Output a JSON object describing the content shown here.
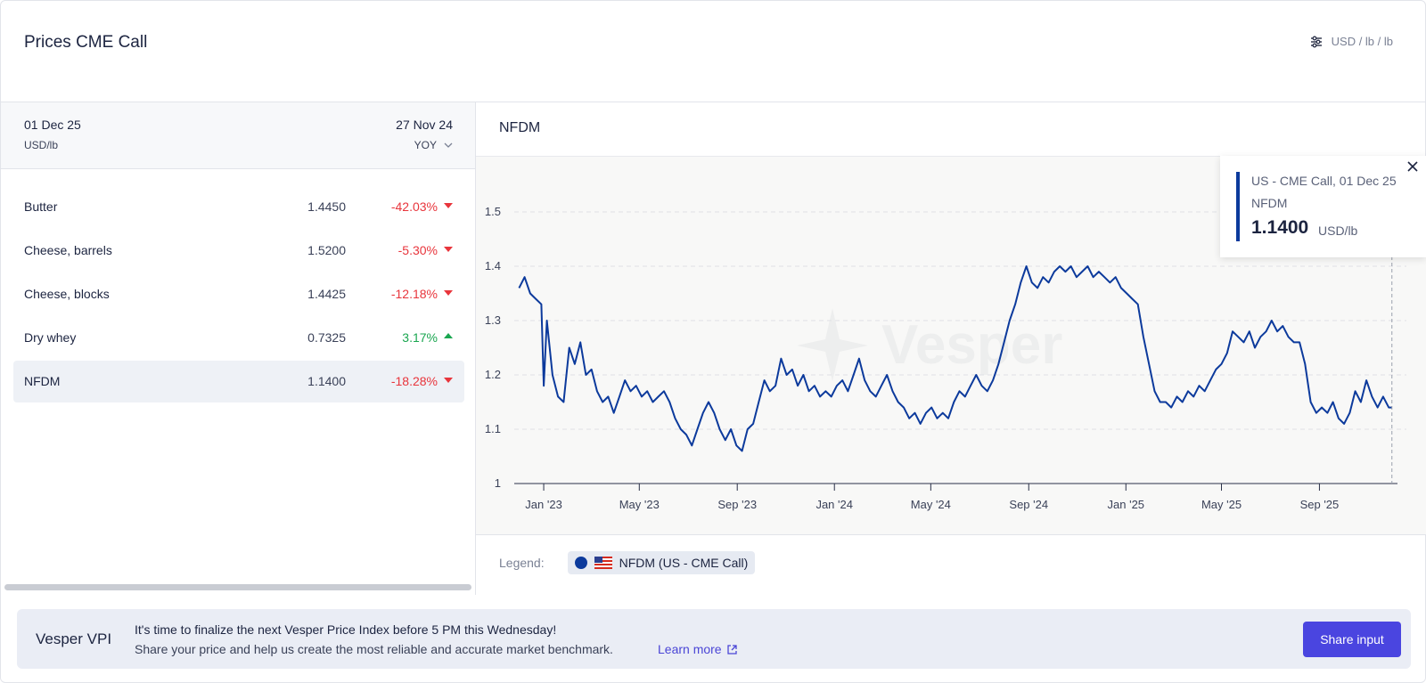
{
  "header": {
    "title": "Prices CME Call",
    "unit_selector": "USD / lb / lb",
    "unit_icon": "sliders-icon"
  },
  "left_panel": {
    "current_date": "01 Dec 25",
    "current_unit": "USD/lb",
    "compare_date": "27 Nov 24",
    "compare_mode": "YOY",
    "rows": [
      {
        "name": "Butter",
        "value": "1.4450",
        "change": "-42.03%",
        "direction": "down"
      },
      {
        "name": "Cheese, barrels",
        "value": "1.5200",
        "change": "-5.30%",
        "direction": "down"
      },
      {
        "name": "Cheese, blocks",
        "value": "1.4425",
        "change": "-12.18%",
        "direction": "down"
      },
      {
        "name": "Dry whey",
        "value": "0.7325",
        "change": "3.17%",
        "direction": "up"
      },
      {
        "name": "NFDM",
        "value": "1.1400",
        "change": "-18.28%",
        "direction": "down",
        "selected": true
      }
    ]
  },
  "chart_panel": {
    "title": "NFDM",
    "watermark": "Vesper",
    "tooltip": {
      "line1": "US - CME Call, 01 Dec 25",
      "line2": "NFDM",
      "value": "1.1400",
      "unit": "USD/lb"
    },
    "legend_label": "Legend:",
    "legend_item": "NFDM (US - CME Call)"
  },
  "chart_data": {
    "type": "line",
    "title": "NFDM",
    "xlabel": "",
    "ylabel": "",
    "ylim": [
      1,
      1.5
    ],
    "y_ticks": [
      "1",
      "1.1",
      "1.2",
      "1.3",
      "1.4",
      "1.5"
    ],
    "x_ticks": [
      "Jan '23",
      "May '23",
      "Sep '23",
      "Jan '24",
      "May '24",
      "Sep '24",
      "Jan '25",
      "May '25",
      "Sep '25"
    ],
    "x_tick_dates": [
      "2023-01-01",
      "2023-05-01",
      "2023-09-01",
      "2024-01-01",
      "2024-05-01",
      "2024-09-01",
      "2025-01-01",
      "2025-05-01",
      "2025-09-01"
    ],
    "grid": "horizontal-dashed",
    "color": "#0c3a9c",
    "series": [
      {
        "name": "NFDM (US - CME Call)",
        "points": [
          [
            "2022-12-01",
            1.36
          ],
          [
            "2022-12-08",
            1.38
          ],
          [
            "2022-12-15",
            1.35
          ],
          [
            "2022-12-22",
            1.34
          ],
          [
            "2022-12-29",
            1.33
          ],
          [
            "2023-01-01",
            1.18
          ],
          [
            "2023-01-05",
            1.3
          ],
          [
            "2023-01-12",
            1.2
          ],
          [
            "2023-01-19",
            1.16
          ],
          [
            "2023-01-26",
            1.15
          ],
          [
            "2023-02-02",
            1.25
          ],
          [
            "2023-02-09",
            1.22
          ],
          [
            "2023-02-16",
            1.26
          ],
          [
            "2023-02-23",
            1.2
          ],
          [
            "2023-03-02",
            1.21
          ],
          [
            "2023-03-09",
            1.17
          ],
          [
            "2023-03-16",
            1.15
          ],
          [
            "2023-03-23",
            1.16
          ],
          [
            "2023-03-30",
            1.13
          ],
          [
            "2023-04-06",
            1.16
          ],
          [
            "2023-04-13",
            1.19
          ],
          [
            "2023-04-20",
            1.17
          ],
          [
            "2023-04-27",
            1.18
          ],
          [
            "2023-05-04",
            1.16
          ],
          [
            "2023-05-11",
            1.17
          ],
          [
            "2023-05-18",
            1.15
          ],
          [
            "2023-05-25",
            1.16
          ],
          [
            "2023-06-01",
            1.17
          ],
          [
            "2023-06-08",
            1.15
          ],
          [
            "2023-06-15",
            1.12
          ],
          [
            "2023-06-22",
            1.1
          ],
          [
            "2023-06-29",
            1.09
          ],
          [
            "2023-07-06",
            1.07
          ],
          [
            "2023-07-13",
            1.1
          ],
          [
            "2023-07-20",
            1.13
          ],
          [
            "2023-07-27",
            1.15
          ],
          [
            "2023-08-03",
            1.13
          ],
          [
            "2023-08-10",
            1.1
          ],
          [
            "2023-08-17",
            1.08
          ],
          [
            "2023-08-24",
            1.1
          ],
          [
            "2023-08-31",
            1.07
          ],
          [
            "2023-09-07",
            1.06
          ],
          [
            "2023-09-14",
            1.1
          ],
          [
            "2023-09-21",
            1.11
          ],
          [
            "2023-09-28",
            1.15
          ],
          [
            "2023-10-05",
            1.19
          ],
          [
            "2023-10-12",
            1.17
          ],
          [
            "2023-10-19",
            1.18
          ],
          [
            "2023-10-26",
            1.23
          ],
          [
            "2023-11-02",
            1.2
          ],
          [
            "2023-11-09",
            1.21
          ],
          [
            "2023-11-16",
            1.18
          ],
          [
            "2023-11-23",
            1.2
          ],
          [
            "2023-11-30",
            1.17
          ],
          [
            "2023-12-07",
            1.18
          ],
          [
            "2023-12-14",
            1.16
          ],
          [
            "2023-12-21",
            1.17
          ],
          [
            "2023-12-28",
            1.16
          ],
          [
            "2024-01-04",
            1.18
          ],
          [
            "2024-01-11",
            1.19
          ],
          [
            "2024-01-18",
            1.17
          ],
          [
            "2024-01-25",
            1.2
          ],
          [
            "2024-02-01",
            1.23
          ],
          [
            "2024-02-08",
            1.19
          ],
          [
            "2024-02-15",
            1.17
          ],
          [
            "2024-02-22",
            1.16
          ],
          [
            "2024-02-29",
            1.18
          ],
          [
            "2024-03-07",
            1.2
          ],
          [
            "2024-03-14",
            1.17
          ],
          [
            "2024-03-21",
            1.15
          ],
          [
            "2024-03-28",
            1.14
          ],
          [
            "2024-04-04",
            1.12
          ],
          [
            "2024-04-11",
            1.13
          ],
          [
            "2024-04-18",
            1.11
          ],
          [
            "2024-04-25",
            1.13
          ],
          [
            "2024-05-02",
            1.14
          ],
          [
            "2024-05-09",
            1.12
          ],
          [
            "2024-05-16",
            1.13
          ],
          [
            "2024-05-23",
            1.12
          ],
          [
            "2024-05-30",
            1.15
          ],
          [
            "2024-06-06",
            1.17
          ],
          [
            "2024-06-13",
            1.16
          ],
          [
            "2024-06-20",
            1.18
          ],
          [
            "2024-06-27",
            1.2
          ],
          [
            "2024-07-04",
            1.18
          ],
          [
            "2024-07-11",
            1.17
          ],
          [
            "2024-07-18",
            1.19
          ],
          [
            "2024-07-25",
            1.22
          ],
          [
            "2024-08-01",
            1.26
          ],
          [
            "2024-08-08",
            1.3
          ],
          [
            "2024-08-15",
            1.33
          ],
          [
            "2024-08-22",
            1.37
          ],
          [
            "2024-08-29",
            1.4
          ],
          [
            "2024-09-05",
            1.37
          ],
          [
            "2024-09-12",
            1.36
          ],
          [
            "2024-09-19",
            1.38
          ],
          [
            "2024-09-26",
            1.37
          ],
          [
            "2024-10-03",
            1.39
          ],
          [
            "2024-10-10",
            1.4
          ],
          [
            "2024-10-17",
            1.39
          ],
          [
            "2024-10-24",
            1.4
          ],
          [
            "2024-10-31",
            1.38
          ],
          [
            "2024-11-07",
            1.39
          ],
          [
            "2024-11-14",
            1.4
          ],
          [
            "2024-11-21",
            1.38
          ],
          [
            "2024-11-28",
            1.39
          ],
          [
            "2024-12-05",
            1.38
          ],
          [
            "2024-12-12",
            1.37
          ],
          [
            "2024-12-19",
            1.38
          ],
          [
            "2024-12-26",
            1.36
          ],
          [
            "2025-01-02",
            1.35
          ],
          [
            "2025-01-09",
            1.34
          ],
          [
            "2025-01-16",
            1.33
          ],
          [
            "2025-01-23",
            1.27
          ],
          [
            "2025-01-30",
            1.22
          ],
          [
            "2025-02-06",
            1.17
          ],
          [
            "2025-02-13",
            1.15
          ],
          [
            "2025-02-20",
            1.15
          ],
          [
            "2025-02-27",
            1.14
          ],
          [
            "2025-03-06",
            1.16
          ],
          [
            "2025-03-13",
            1.15
          ],
          [
            "2025-03-20",
            1.17
          ],
          [
            "2025-03-27",
            1.16
          ],
          [
            "2025-04-03",
            1.18
          ],
          [
            "2025-04-10",
            1.17
          ],
          [
            "2025-04-17",
            1.19
          ],
          [
            "2025-04-24",
            1.21
          ],
          [
            "2025-05-01",
            1.22
          ],
          [
            "2025-05-08",
            1.24
          ],
          [
            "2025-05-15",
            1.28
          ],
          [
            "2025-05-22",
            1.27
          ],
          [
            "2025-05-29",
            1.26
          ],
          [
            "2025-06-05",
            1.28
          ],
          [
            "2025-06-12",
            1.25
          ],
          [
            "2025-06-19",
            1.27
          ],
          [
            "2025-06-26",
            1.28
          ],
          [
            "2025-07-03",
            1.3
          ],
          [
            "2025-07-10",
            1.28
          ],
          [
            "2025-07-17",
            1.29
          ],
          [
            "2025-07-24",
            1.27
          ],
          [
            "2025-07-31",
            1.26
          ],
          [
            "2025-08-07",
            1.26
          ],
          [
            "2025-08-14",
            1.22
          ],
          [
            "2025-08-21",
            1.15
          ],
          [
            "2025-08-28",
            1.13
          ],
          [
            "2025-09-04",
            1.14
          ],
          [
            "2025-09-11",
            1.13
          ],
          [
            "2025-09-18",
            1.15
          ],
          [
            "2025-09-25",
            1.12
          ],
          [
            "2025-10-02",
            1.11
          ],
          [
            "2025-10-09",
            1.13
          ],
          [
            "2025-10-16",
            1.17
          ],
          [
            "2025-10-23",
            1.15
          ],
          [
            "2025-10-30",
            1.19
          ],
          [
            "2025-11-06",
            1.16
          ],
          [
            "2025-11-13",
            1.14
          ],
          [
            "2025-11-20",
            1.16
          ],
          [
            "2025-11-27",
            1.14
          ],
          [
            "2025-12-01",
            1.14
          ]
        ]
      }
    ]
  },
  "banner": {
    "brand": "Vesper VPI",
    "message_line1": "It's time to finalize the next Vesper Price Index before 5 PM this Wednesday!",
    "message_line2": "Share your price and help us create the most reliable and accurate market benchmark.",
    "learn_more": "Learn more",
    "share_button": "Share input"
  }
}
